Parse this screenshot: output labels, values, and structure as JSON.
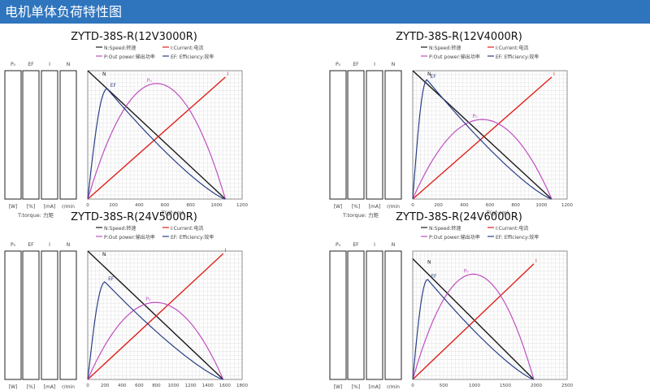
{
  "banner": {
    "title": "电机单体负荷特性图"
  },
  "legend_labels": {
    "n": "N:Speed:转速",
    "i": "I:Current:电流",
    "p": "P:Out power:输出功率",
    "ef": "EF: Efficiency:效率"
  },
  "axis_labels": {
    "x": "T(gf·cm)",
    "torque": "T:torque: 力矩",
    "col_headers": [
      "P₀",
      "EF",
      "I",
      "N"
    ],
    "col_units": [
      "[W]",
      "[%]",
      "[mA]",
      "r/min"
    ]
  },
  "colors": {
    "speed": "#1a1a1a",
    "current": "#e0201b",
    "power": "#bf4ec0",
    "efficiency": "#2a3f86",
    "banner": "#2f75bd"
  },
  "chart_data": [
    {
      "title": "ZYTD-38S-R(12V3000R)",
      "type": "line",
      "xlabel": "T(gf·cm)",
      "xlim": [
        0,
        1200
      ],
      "xticks": [
        0,
        200,
        400,
        600,
        800,
        1000,
        1200
      ],
      "stall_torque": 1070,
      "series": [
        {
          "name": "N",
          "x": [
            0,
            1070
          ],
          "y": [
            1.0,
            0.0
          ]
        },
        {
          "name": "I",
          "x": [
            0,
            1070
          ],
          "y": [
            0.0,
            0.95
          ]
        },
        {
          "name": "P",
          "peak_x": 535,
          "peak_y": 0.9
        },
        {
          "name": "EF",
          "peak_x": 150,
          "peak_y": 0.86
        }
      ]
    },
    {
      "title": "ZYTD-38S-R(12V4000R)",
      "type": "line",
      "xlabel": "T(gf·cm)",
      "xlim": [
        0,
        1200
      ],
      "xticks": [
        0,
        200,
        400,
        600,
        800,
        1000,
        1200
      ],
      "stall_torque": 1080,
      "series": [
        {
          "name": "N",
          "x": [
            0,
            1080
          ],
          "y": [
            1.0,
            0.0
          ]
        },
        {
          "name": "I",
          "x": [
            0,
            1080
          ],
          "y": [
            0.0,
            0.95
          ]
        },
        {
          "name": "P",
          "peak_x": 540,
          "peak_y": 0.62
        },
        {
          "name": "EF",
          "peak_x": 110,
          "peak_y": 0.93
        }
      ]
    },
    {
      "title": "ZYTD-38S-R(24V5000R)",
      "type": "line",
      "xlabel": "T(gf·cm)",
      "xlim": [
        0,
        1800
      ],
      "xticks": [
        0,
        200,
        400,
        600,
        800,
        1000,
        1200,
        1400,
        1600,
        1800
      ],
      "stall_torque": 1580,
      "series": [
        {
          "name": "N",
          "x": [
            0,
            1580
          ],
          "y": [
            1.0,
            0.0
          ]
        },
        {
          "name": "I",
          "x": [
            0,
            1580
          ],
          "y": [
            0.0,
            0.98
          ]
        },
        {
          "name": "P",
          "peak_x": 790,
          "peak_y": 0.6
        },
        {
          "name": "EF",
          "peak_x": 200,
          "peak_y": 0.76
        }
      ]
    },
    {
      "title": "ZYTD-38S-R(24V6000R)",
      "type": "line",
      "xlabel": "T(gf·cm)",
      "xlim": [
        0,
        2500
      ],
      "xticks": [
        0,
        500,
        1000,
        1500,
        2000,
        2500
      ],
      "stall_torque": 1960,
      "series": [
        {
          "name": "N",
          "x": [
            0,
            1960
          ],
          "y": [
            0.94,
            0.0
          ]
        },
        {
          "name": "I",
          "x": [
            0,
            1960
          ],
          "y": [
            0.0,
            0.9
          ]
        },
        {
          "name": "P",
          "peak_x": 980,
          "peak_y": 0.82
        },
        {
          "name": "EF",
          "peak_x": 240,
          "peak_y": 0.78
        }
      ]
    }
  ]
}
